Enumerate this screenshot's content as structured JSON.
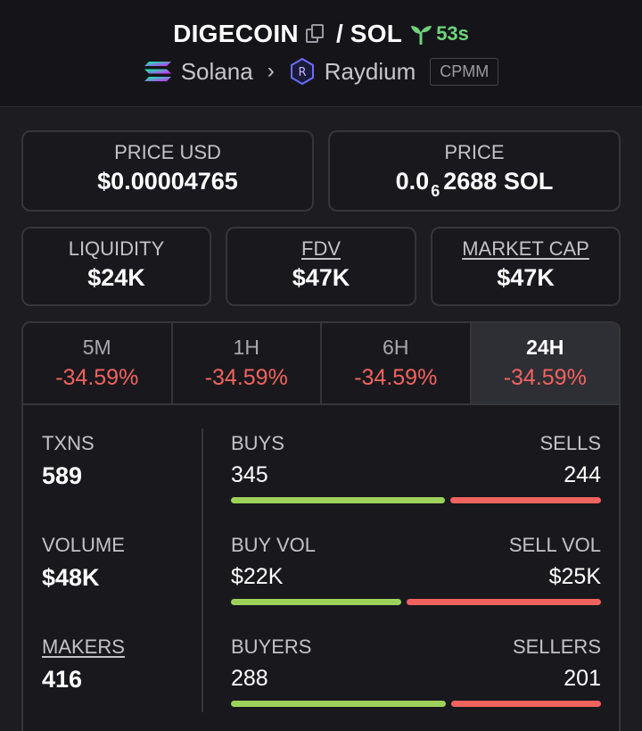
{
  "header": {
    "token": "DIGECOIN",
    "quote": "SOL",
    "separator": "/",
    "age": "53s",
    "chain": "Solana",
    "dex": "Raydium",
    "pool_type": "CPMM"
  },
  "price_usd": {
    "label": "PRICE USD",
    "value": "$0.00004765"
  },
  "price_native": {
    "label": "PRICE",
    "prefix": "0.0",
    "zeros": "6",
    "digits": "2688",
    "unit": "SOL"
  },
  "liquidity": {
    "label": "LIQUIDITY",
    "value": "$24K"
  },
  "fdv": {
    "label": "FDV",
    "value": "$47K"
  },
  "market_cap": {
    "label": "MARKET CAP",
    "value": "$47K"
  },
  "tabs": [
    {
      "label": "5M",
      "change": "-34.59%"
    },
    {
      "label": "1H",
      "change": "-34.59%"
    },
    {
      "label": "6H",
      "change": "-34.59%"
    },
    {
      "label": "24H",
      "change": "-34.59%",
      "active": true
    }
  ],
  "stats": {
    "txns": {
      "label": "TXNS",
      "value": "589"
    },
    "volume": {
      "label": "VOLUME",
      "value": "$48K"
    },
    "makers": {
      "label": "MAKERS",
      "value": "416"
    },
    "buys": {
      "label": "BUYS",
      "value": "345",
      "share": 0.5857
    },
    "sells": {
      "label": "SELLS",
      "value": "244"
    },
    "buy_vol": {
      "label": "BUY VOL",
      "value": "$22K",
      "share": 0.468
    },
    "sell_vol": {
      "label": "SELL VOL",
      "value": "$25K"
    },
    "buyers": {
      "label": "BUYERS",
      "value": "288",
      "share": 0.589
    },
    "sellers": {
      "label": "SELLERS",
      "value": "201"
    }
  },
  "colors": {
    "positive": "#9dd25a",
    "negative": "#f2625f",
    "age": "#6fd37c"
  },
  "icons": [
    "copy-icon",
    "sprout-icon",
    "solana-icon",
    "chevron-right-icon",
    "raydium-icon"
  ]
}
